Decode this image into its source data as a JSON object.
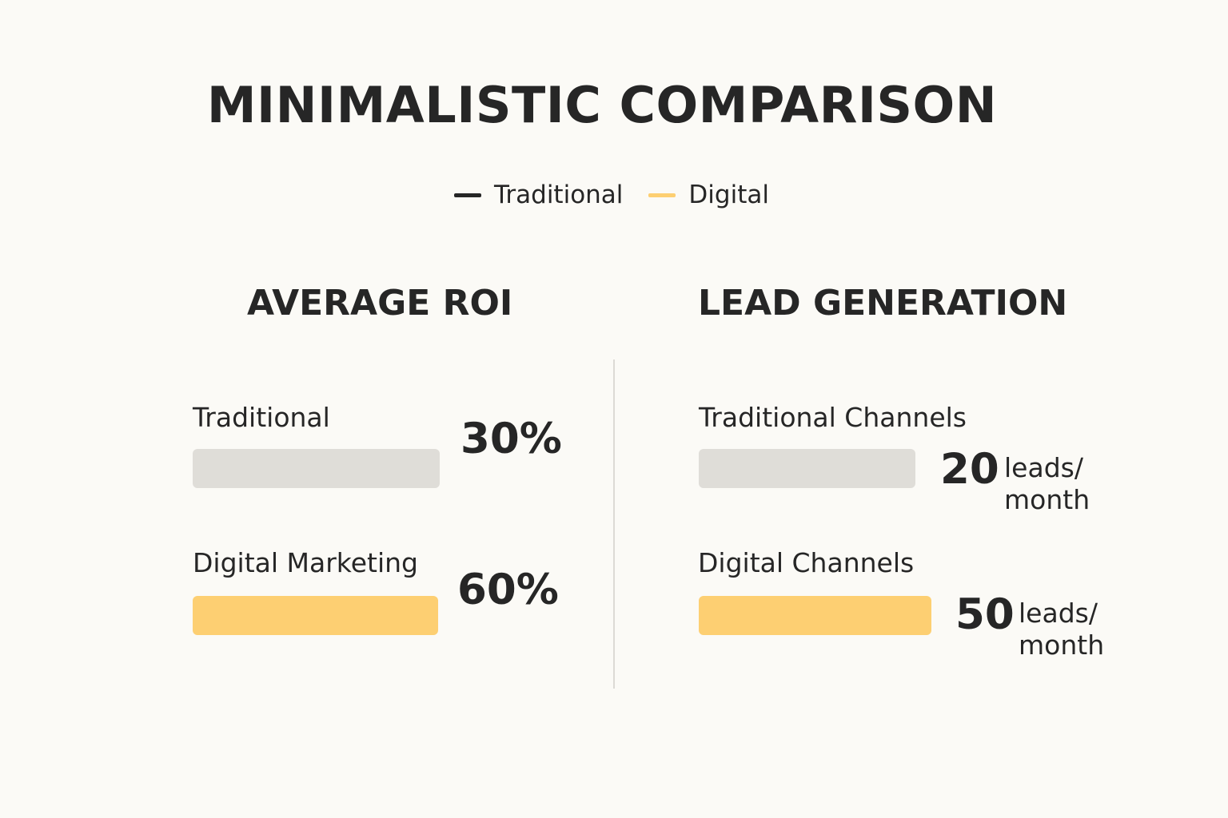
{
  "title": "MINIMALISTIC COMPARISON",
  "legend": [
    {
      "label": "Traditional",
      "color": "#262626"
    },
    {
      "label": "Digital",
      "color": "#fdcf72"
    }
  ],
  "colors": {
    "traditional_bar": "#dfddd8",
    "digital_bar": "#fdcf72",
    "divider": "#dcdad5",
    "background": "#fbfaf6"
  },
  "chart_data": [
    {
      "type": "bar",
      "title": "AVERAGE ROI",
      "categories": [
        "Traditional",
        "Digital Marketing"
      ],
      "values": [
        30,
        60
      ],
      "value_labels": [
        "30%",
        "60%"
      ]
    },
    {
      "type": "bar",
      "title": "LEAD GENERATION",
      "categories": [
        "Traditional Channels",
        "Digital Channels"
      ],
      "values": [
        20,
        50
      ],
      "value_labels": [
        "20",
        "50"
      ],
      "unit": "leads/ month"
    }
  ]
}
